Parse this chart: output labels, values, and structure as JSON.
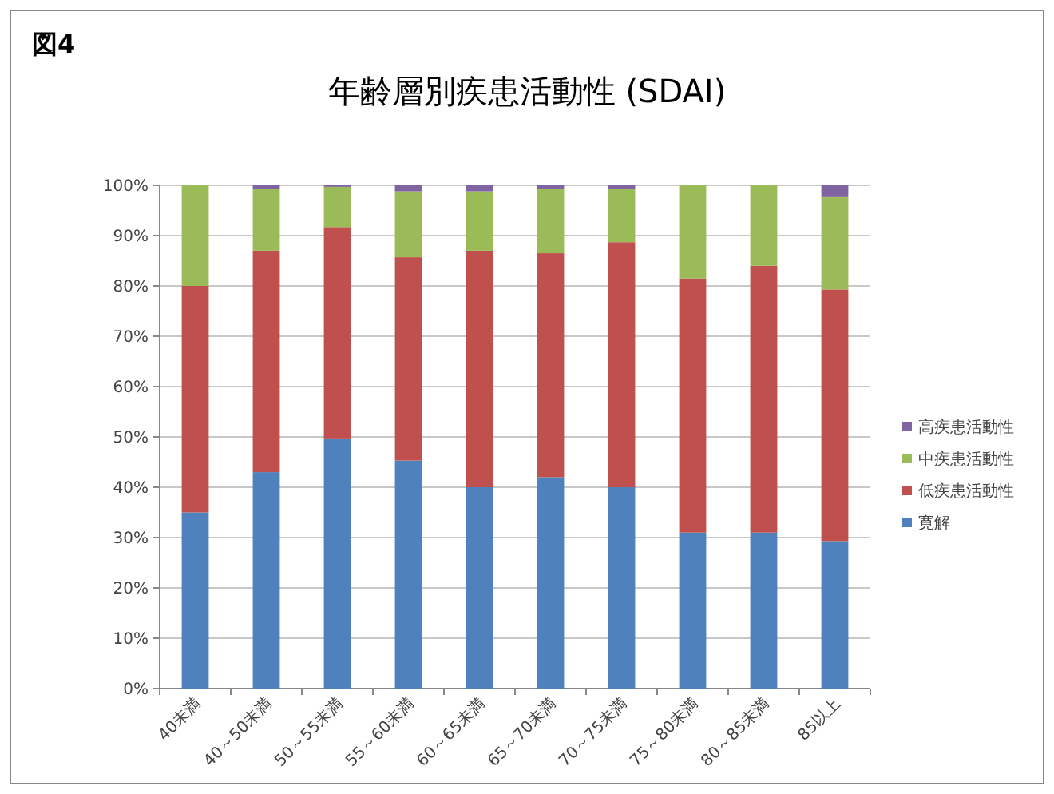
{
  "chart_data": {
    "type": "bar",
    "title": "年齢層別疾患活動性 (SDAI)",
    "annotations": [
      "図4"
    ],
    "categories": [
      "40未満",
      "40～50未満",
      "50～55未満",
      "55～60未満",
      "60～65未満",
      "65～70未満",
      "70～75未満",
      "75～80未満",
      "80～85未満",
      "85以上"
    ],
    "series": [
      {
        "name": "寛解",
        "color": "#4f81bd",
        "values": [
          35,
          43,
          49.7,
          45.3,
          40,
          42,
          40,
          31,
          31,
          29.3
        ]
      },
      {
        "name": "低疾患活動性",
        "color": "#c0504d",
        "values": [
          45,
          44,
          42,
          40.4,
          47,
          44.5,
          48.7,
          50.5,
          53,
          50
        ]
      },
      {
        "name": "中疾患活動性",
        "color": "#9bbb59",
        "values": [
          20,
          12.3,
          8,
          13.1,
          11.8,
          12.8,
          10.6,
          18.5,
          16,
          18.5
        ]
      },
      {
        "name": "高疾患活動性",
        "color": "#8064a2",
        "values": [
          0,
          0.7,
          0.3,
          1.2,
          1.2,
          0.7,
          0.7,
          0,
          0,
          2.2
        ]
      }
    ],
    "stacked": true,
    "ylim": [
      0,
      100
    ],
    "yticks": [
      {
        "value": 0,
        "label": "0%"
      },
      {
        "value": 10,
        "label": "10%"
      },
      {
        "value": 20,
        "label": "20%"
      },
      {
        "value": 30,
        "label": "30%"
      },
      {
        "value": 40,
        "label": "40%"
      },
      {
        "value": 50,
        "label": "50%"
      },
      {
        "value": 60,
        "label": "60%"
      },
      {
        "value": 70,
        "label": "70%"
      },
      {
        "value": 80,
        "label": "80%"
      },
      {
        "value": 90,
        "label": "90%"
      },
      {
        "value": 100,
        "label": "100%"
      }
    ],
    "grid": "y",
    "legend": "right"
  }
}
